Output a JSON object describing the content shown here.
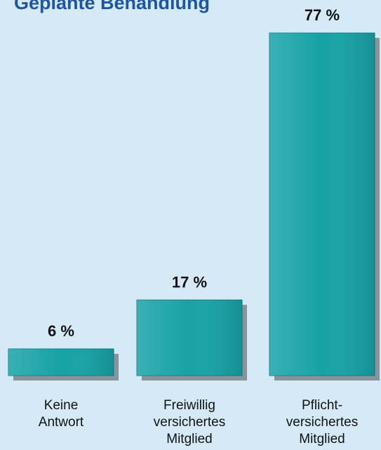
{
  "chart_data": {
    "type": "bar",
    "title": "Geplante Behandlung",
    "categories": [
      [
        "Keine",
        "Antwort"
      ],
      [
        "Freiwillig",
        "versichertes",
        "Mitglied"
      ],
      [
        "Pflicht-",
        "versichertes",
        "Mitglied"
      ]
    ],
    "values": [
      6,
      17,
      77
    ],
    "value_labels": [
      "6 %",
      "17 %",
      "77 %"
    ],
    "color": "#17a2a6"
  }
}
